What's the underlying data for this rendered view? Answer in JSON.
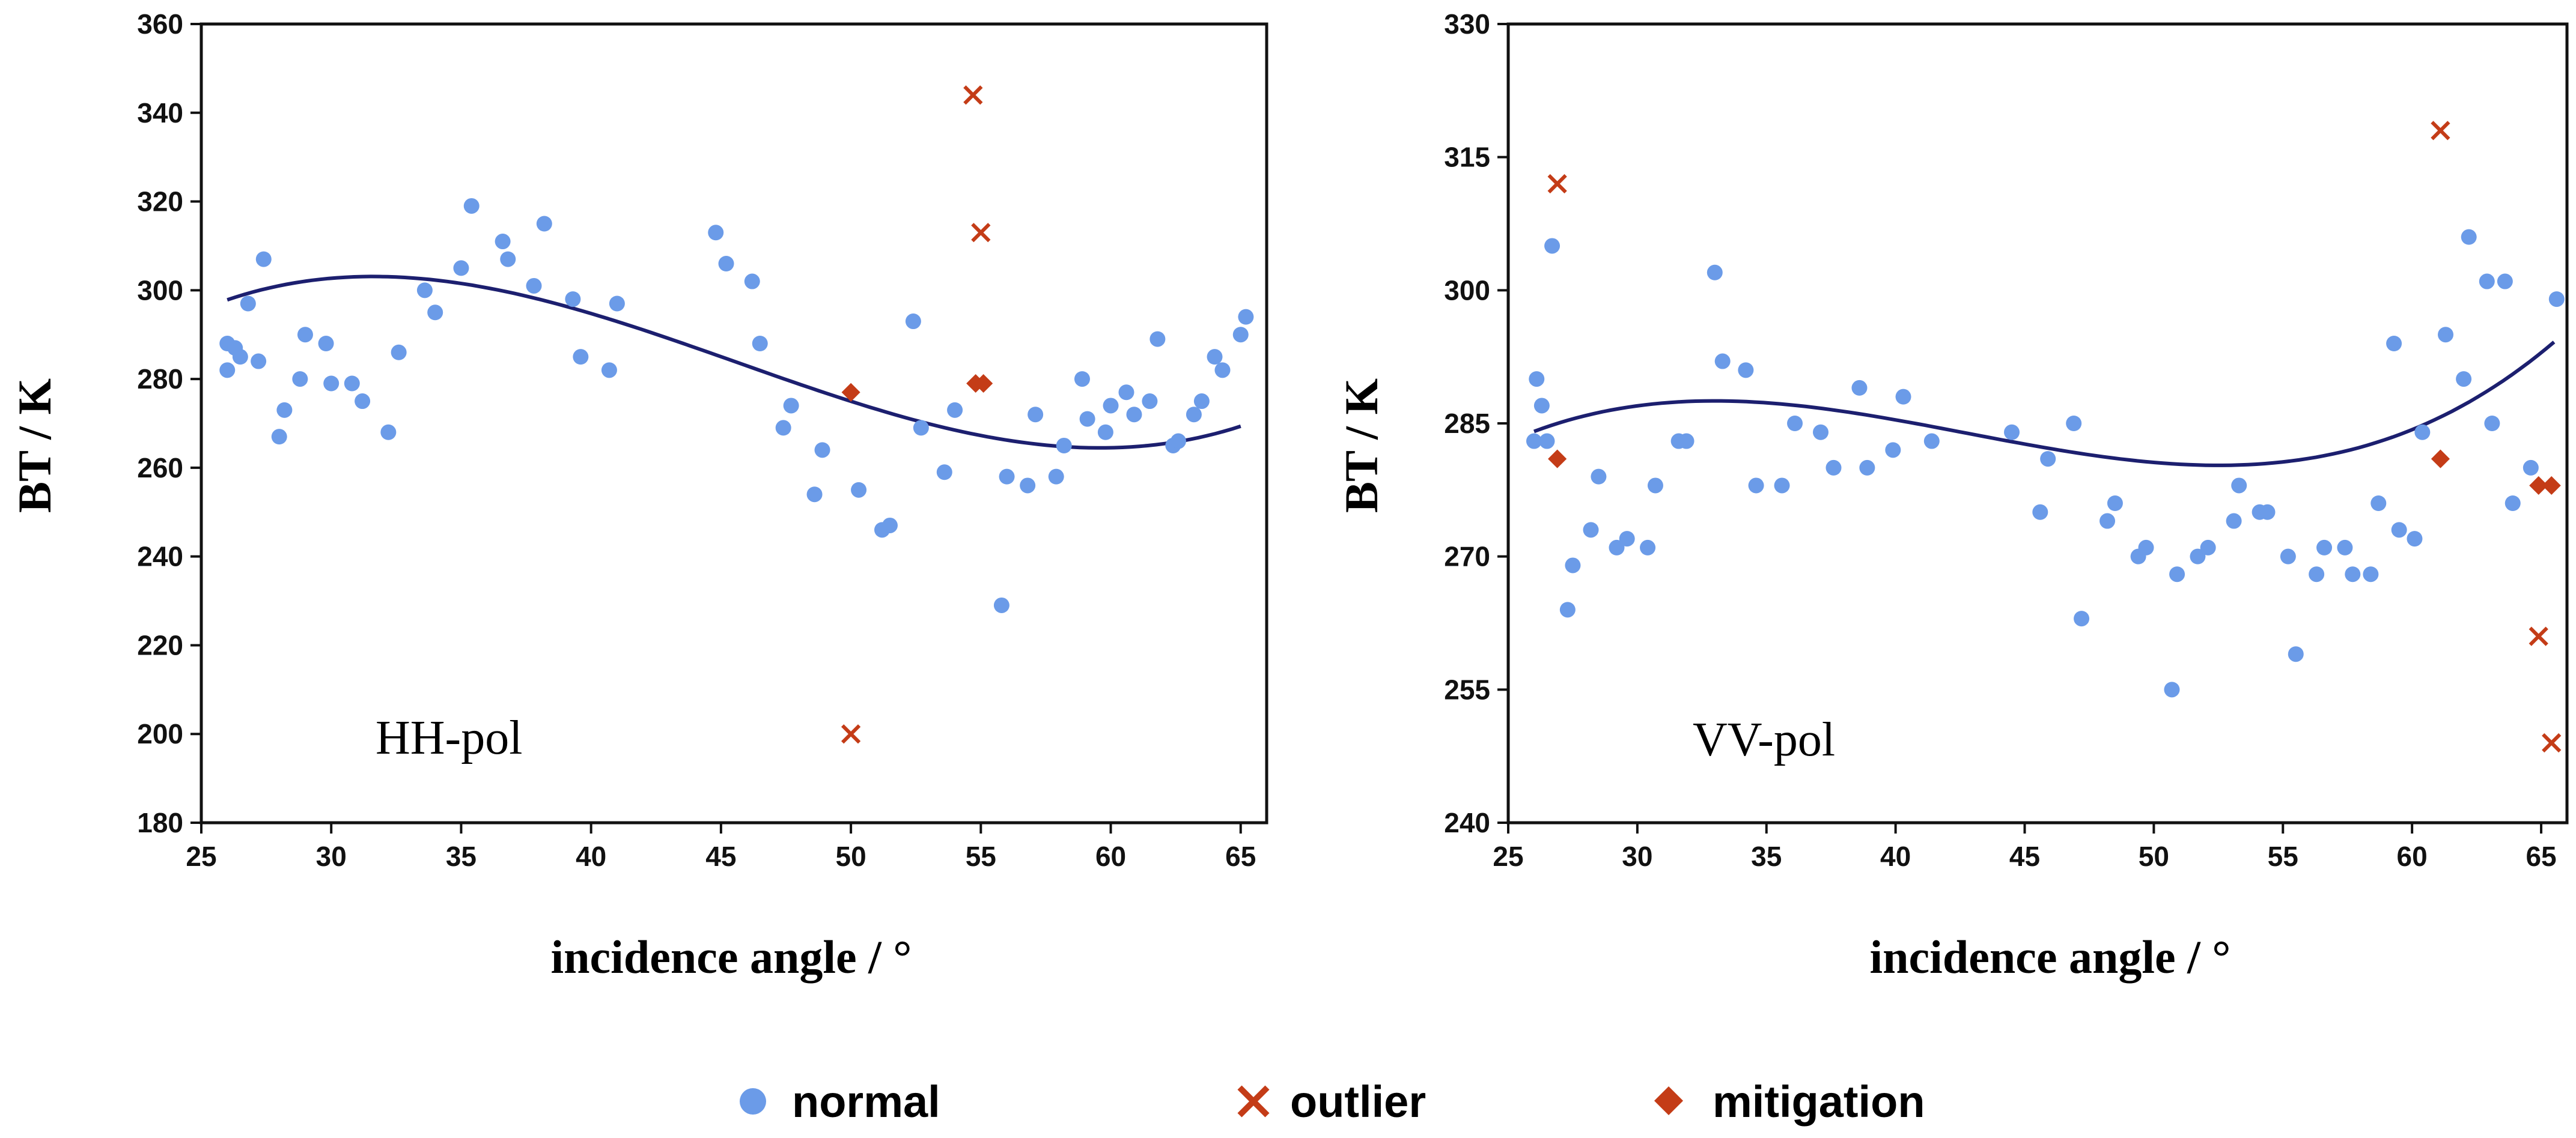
{
  "colors": {
    "normal": "#6b9be8",
    "outlier": "#c43c17",
    "mitigation": "#c43c17",
    "fit": "#1c1f6f",
    "axis": "#111111"
  },
  "legend": [
    {
      "label": "normal",
      "marker": "circle"
    },
    {
      "label": "outlier",
      "marker": "cross"
    },
    {
      "label": "mitigation",
      "marker": "diamond"
    }
  ],
  "chart_data": [
    {
      "type": "scatter",
      "annotation": "HH-pol",
      "xlabel": "incidence angle /  °",
      "ylabel": "BT / K",
      "xlim": [
        25,
        66
      ],
      "ylim": [
        180,
        360
      ],
      "xticks": [
        25,
        30,
        35,
        40,
        45,
        50,
        55,
        60,
        65
      ],
      "yticks": [
        180,
        200,
        220,
        240,
        260,
        280,
        300,
        320,
        340,
        360
      ],
      "fit_coefficients": [
        44.23,
        19.9,
        -0.4818,
        0.003522
      ],
      "fit_range": [
        26,
        65
      ],
      "series": [
        {
          "name": "normal",
          "points": [
            [
              26,
              288
            ],
            [
              26,
              282
            ],
            [
              26.3,
              287
            ],
            [
              26.5,
              285
            ],
            [
              26.8,
              297
            ],
            [
              27.2,
              284
            ],
            [
              27.4,
              307
            ],
            [
              28,
              267
            ],
            [
              28.2,
              273
            ],
            [
              28.8,
              280
            ],
            [
              29,
              290
            ],
            [
              29.8,
              288
            ],
            [
              30,
              279
            ],
            [
              30.8,
              279
            ],
            [
              31.2,
              275
            ],
            [
              32.2,
              268
            ],
            [
              32.6,
              286
            ],
            [
              33.6,
              300
            ],
            [
              34,
              295
            ],
            [
              35,
              305
            ],
            [
              35.4,
              319
            ],
            [
              36.6,
              311
            ],
            [
              36.8,
              307
            ],
            [
              37.8,
              301
            ],
            [
              38.2,
              315
            ],
            [
              39.3,
              298
            ],
            [
              39.6,
              285
            ],
            [
              40.7,
              282
            ],
            [
              41,
              297
            ],
            [
              44.8,
              313
            ],
            [
              45.2,
              306
            ],
            [
              46.2,
              302
            ],
            [
              46.5,
              288
            ],
            [
              47.4,
              269
            ],
            [
              47.7,
              274
            ],
            [
              48.6,
              254
            ],
            [
              48.9,
              264
            ],
            [
              50.3,
              255
            ],
            [
              51.2,
              246
            ],
            [
              51.5,
              247
            ],
            [
              52.4,
              293
            ],
            [
              52.7,
              269
            ],
            [
              53.6,
              259
            ],
            [
              54,
              273
            ],
            [
              55.8,
              229
            ],
            [
              56,
              258
            ],
            [
              56.8,
              256
            ],
            [
              57.1,
              272
            ],
            [
              57.9,
              258
            ],
            [
              58.2,
              265
            ],
            [
              58.9,
              280
            ],
            [
              59.1,
              271
            ],
            [
              59.8,
              268
            ],
            [
              60,
              274
            ],
            [
              60.6,
              277
            ],
            [
              60.9,
              272
            ],
            [
              61.5,
              275
            ],
            [
              61.8,
              289
            ],
            [
              62.4,
              265
            ],
            [
              62.6,
              266
            ],
            [
              63.2,
              272
            ],
            [
              63.5,
              275
            ],
            [
              64,
              285
            ],
            [
              64.3,
              282
            ],
            [
              65,
              290
            ],
            [
              65.2,
              294
            ]
          ]
        },
        {
          "name": "outlier",
          "points": [
            [
              54.7,
              344
            ],
            [
              55,
              313
            ],
            [
              50,
              200
            ]
          ]
        },
        {
          "name": "mitigation",
          "points": [
            [
              50,
              277
            ],
            [
              54.8,
              279
            ],
            [
              55.1,
              279
            ]
          ]
        }
      ]
    },
    {
      "type": "scatter",
      "annotation": "VV-pol",
      "xlabel": "incidence angle /  °",
      "ylabel": "BT / K",
      "xlim": [
        25,
        66
      ],
      "ylim": [
        240,
        330
      ],
      "xticks": [
        25,
        30,
        35,
        40,
        45,
        50,
        55,
        60,
        65
      ],
      "yticks": [
        240,
        255,
        270,
        285,
        300,
        315,
        330
      ],
      "fit_coefficients": [
        155.6,
        10.12,
        -0.2498,
        0.001948
      ],
      "fit_range": [
        26,
        65.5
      ],
      "series": [
        {
          "name": "normal",
          "points": [
            [
              26,
              283
            ],
            [
              26.1,
              290
            ],
            [
              26.3,
              287
            ],
            [
              26.5,
              283
            ],
            [
              26.7,
              305
            ],
            [
              27.3,
              264
            ],
            [
              27.5,
              269
            ],
            [
              28.2,
              273
            ],
            [
              28.5,
              279
            ],
            [
              29.2,
              271
            ],
            [
              29.6,
              272
            ],
            [
              30.4,
              271
            ],
            [
              30.7,
              278
            ],
            [
              31.6,
              283
            ],
            [
              31.9,
              283
            ],
            [
              33,
              302
            ],
            [
              33.3,
              292
            ],
            [
              34.2,
              291
            ],
            [
              34.6,
              278
            ],
            [
              35.6,
              278
            ],
            [
              36.1,
              285
            ],
            [
              37.1,
              284
            ],
            [
              37.6,
              280
            ],
            [
              38.6,
              289
            ],
            [
              38.9,
              280
            ],
            [
              39.9,
              282
            ],
            [
              40.3,
              288
            ],
            [
              41.4,
              283
            ],
            [
              44.5,
              284
            ],
            [
              45.6,
              275
            ],
            [
              45.9,
              281
            ],
            [
              46.9,
              285
            ],
            [
              47.2,
              263
            ],
            [
              48.2,
              274
            ],
            [
              48.5,
              276
            ],
            [
              49.4,
              270
            ],
            [
              49.7,
              271
            ],
            [
              50.7,
              255
            ],
            [
              50.9,
              268
            ],
            [
              51.7,
              270
            ],
            [
              52.1,
              271
            ],
            [
              53.1,
              274
            ],
            [
              53.3,
              278
            ],
            [
              54.1,
              275
            ],
            [
              54.4,
              275
            ],
            [
              55.2,
              270
            ],
            [
              55.5,
              259
            ],
            [
              56.3,
              268
            ],
            [
              56.6,
              271
            ],
            [
              57.4,
              271
            ],
            [
              57.7,
              268
            ],
            [
              58.4,
              268
            ],
            [
              58.7,
              276
            ],
            [
              59.3,
              294
            ],
            [
              59.5,
              273
            ],
            [
              60.1,
              272
            ],
            [
              60.4,
              284
            ],
            [
              61.3,
              295
            ],
            [
              62,
              290
            ],
            [
              62.2,
              306
            ],
            [
              62.9,
              301
            ],
            [
              63.1,
              285
            ],
            [
              63.6,
              301
            ],
            [
              63.9,
              276
            ],
            [
              64.6,
              280
            ],
            [
              65.6,
              299
            ]
          ]
        },
        {
          "name": "outlier",
          "points": [
            [
              26.9,
              312
            ],
            [
              61.1,
              318
            ],
            [
              64.9,
              261
            ],
            [
              65.4,
              249
            ]
          ]
        },
        {
          "name": "mitigation",
          "points": [
            [
              26.9,
              281
            ],
            [
              61.1,
              281
            ],
            [
              64.9,
              278
            ],
            [
              65.4,
              278
            ]
          ]
        }
      ]
    }
  ]
}
